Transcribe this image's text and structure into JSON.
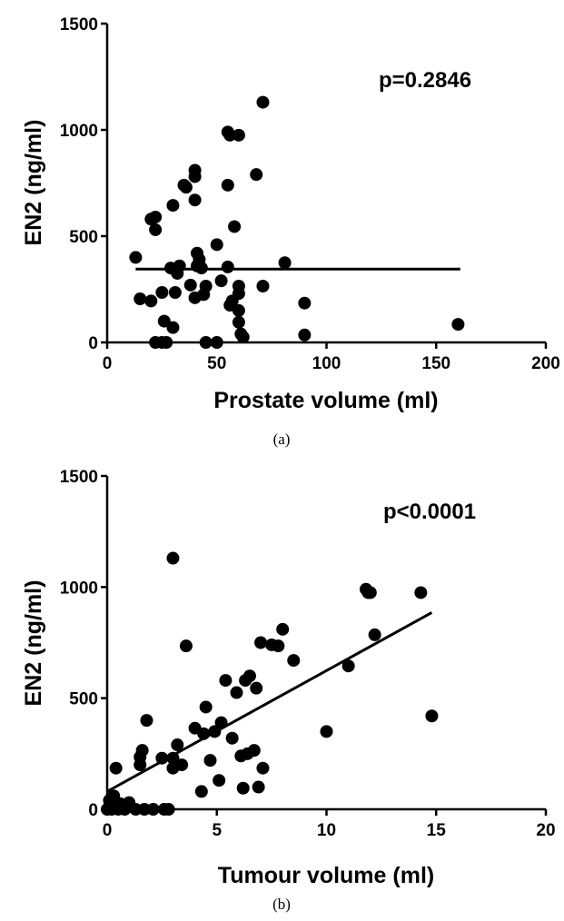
{
  "chart_data": [
    {
      "type": "scatter",
      "caption": "(a)",
      "xlabel": "Prostate volume (ml)",
      "ylabel": "EN2 (ng/ml)",
      "annotation": "p=0.2846",
      "xlim": [
        0,
        200
      ],
      "ylim": [
        0,
        1500
      ],
      "xticks": [
        "0",
        "50",
        "100",
        "150",
        "200"
      ],
      "yticks": [
        "0",
        "500",
        "1000",
        "1500"
      ],
      "grid": false,
      "points": [
        [
          13,
          400
        ],
        [
          15,
          205
        ],
        [
          20,
          580
        ],
        [
          22,
          590
        ],
        [
          22,
          530
        ],
        [
          20,
          195
        ],
        [
          25,
          235
        ],
        [
          22,
          0
        ],
        [
          25,
          0
        ],
        [
          27,
          0
        ],
        [
          26,
          100
        ],
        [
          30,
          70
        ],
        [
          29,
          350
        ],
        [
          30,
          645
        ],
        [
          31,
          235
        ],
        [
          32,
          325
        ],
        [
          35,
          740
        ],
        [
          33,
          360
        ],
        [
          38,
          270
        ],
        [
          36,
          730
        ],
        [
          40,
          810
        ],
        [
          40,
          780
        ],
        [
          41,
          420
        ],
        [
          42,
          390
        ],
        [
          40,
          670
        ],
        [
          41,
          360
        ],
        [
          42,
          360
        ],
        [
          43,
          350
        ],
        [
          40,
          210
        ],
        [
          44,
          225
        ],
        [
          45,
          0
        ],
        [
          45,
          265
        ],
        [
          50,
          460
        ],
        [
          50,
          0
        ],
        [
          52,
          290
        ],
        [
          55,
          990
        ],
        [
          56,
          975
        ],
        [
          55,
          740
        ],
        [
          55,
          355
        ],
        [
          56,
          175
        ],
        [
          58,
          545
        ],
        [
          57,
          195
        ],
        [
          60,
          975
        ],
        [
          60,
          265
        ],
        [
          60,
          230
        ],
        [
          60,
          150
        ],
        [
          60,
          95
        ],
        [
          61,
          40
        ],
        [
          62,
          25
        ],
        [
          68,
          790
        ],
        [
          71,
          1130
        ],
        [
          71,
          265
        ],
        [
          81,
          375
        ],
        [
          90,
          185
        ],
        [
          90,
          35
        ],
        [
          160,
          85
        ]
      ],
      "fit_line": [
        [
          13,
          345
        ],
        [
          161,
          345
        ]
      ]
    },
    {
      "type": "scatter",
      "caption": "(b)",
      "xlabel": "Tumour volume (ml)",
      "ylabel": "EN2 (ng/ml)",
      "annotation": "p<0.0001",
      "xlim": [
        0,
        20
      ],
      "ylim": [
        0,
        1500
      ],
      "xticks": [
        "0",
        "5",
        "10",
        "15",
        "20"
      ],
      "yticks": [
        "0",
        "500",
        "1000",
        "1500"
      ],
      "grid": false,
      "points": [
        [
          0,
          0
        ],
        [
          0.1,
          40
        ],
        [
          0.2,
          0
        ],
        [
          0.3,
          60
        ],
        [
          0.5,
          0
        ],
        [
          0.6,
          25
        ],
        [
          0.8,
          0
        ],
        [
          1.0,
          30
        ],
        [
          0.4,
          185
        ],
        [
          1.3,
          0
        ],
        [
          1.5,
          235
        ],
        [
          1.5,
          200
        ],
        [
          1.6,
          265
        ],
        [
          1.7,
          0
        ],
        [
          1.8,
          400
        ],
        [
          2.1,
          0
        ],
        [
          2.5,
          230
        ],
        [
          2.6,
          0
        ],
        [
          2.8,
          0
        ],
        [
          3.0,
          1130
        ],
        [
          3.0,
          185
        ],
        [
          3.0,
          230
        ],
        [
          3.2,
          290
        ],
        [
          3.4,
          200
        ],
        [
          3.6,
          735
        ],
        [
          4.0,
          365
        ],
        [
          4.3,
          80
        ],
        [
          4.4,
          340
        ],
        [
          4.5,
          460
        ],
        [
          4.7,
          220
        ],
        [
          4.9,
          350
        ],
        [
          5.1,
          130
        ],
        [
          5.2,
          390
        ],
        [
          5.4,
          580
        ],
        [
          5.7,
          320
        ],
        [
          5.9,
          525
        ],
        [
          6.1,
          240
        ],
        [
          6.2,
          95
        ],
        [
          6.3,
          580
        ],
        [
          6.4,
          250
        ],
        [
          6.5,
          600
        ],
        [
          6.7,
          265
        ],
        [
          6.8,
          545
        ],
        [
          6.9,
          100
        ],
        [
          7.0,
          750
        ],
        [
          7.1,
          185
        ],
        [
          7.5,
          740
        ],
        [
          7.8,
          735
        ],
        [
          8.0,
          810
        ],
        [
          8.5,
          670
        ],
        [
          10.0,
          350
        ],
        [
          11.0,
          645
        ],
        [
          11.8,
          990
        ],
        [
          11.9,
          975
        ],
        [
          12.0,
          975
        ],
        [
          12.2,
          785
        ],
        [
          14.3,
          975
        ],
        [
          14.8,
          420
        ]
      ],
      "fit_line": [
        [
          0,
          80
        ],
        [
          14.8,
          885
        ]
      ]
    }
  ]
}
